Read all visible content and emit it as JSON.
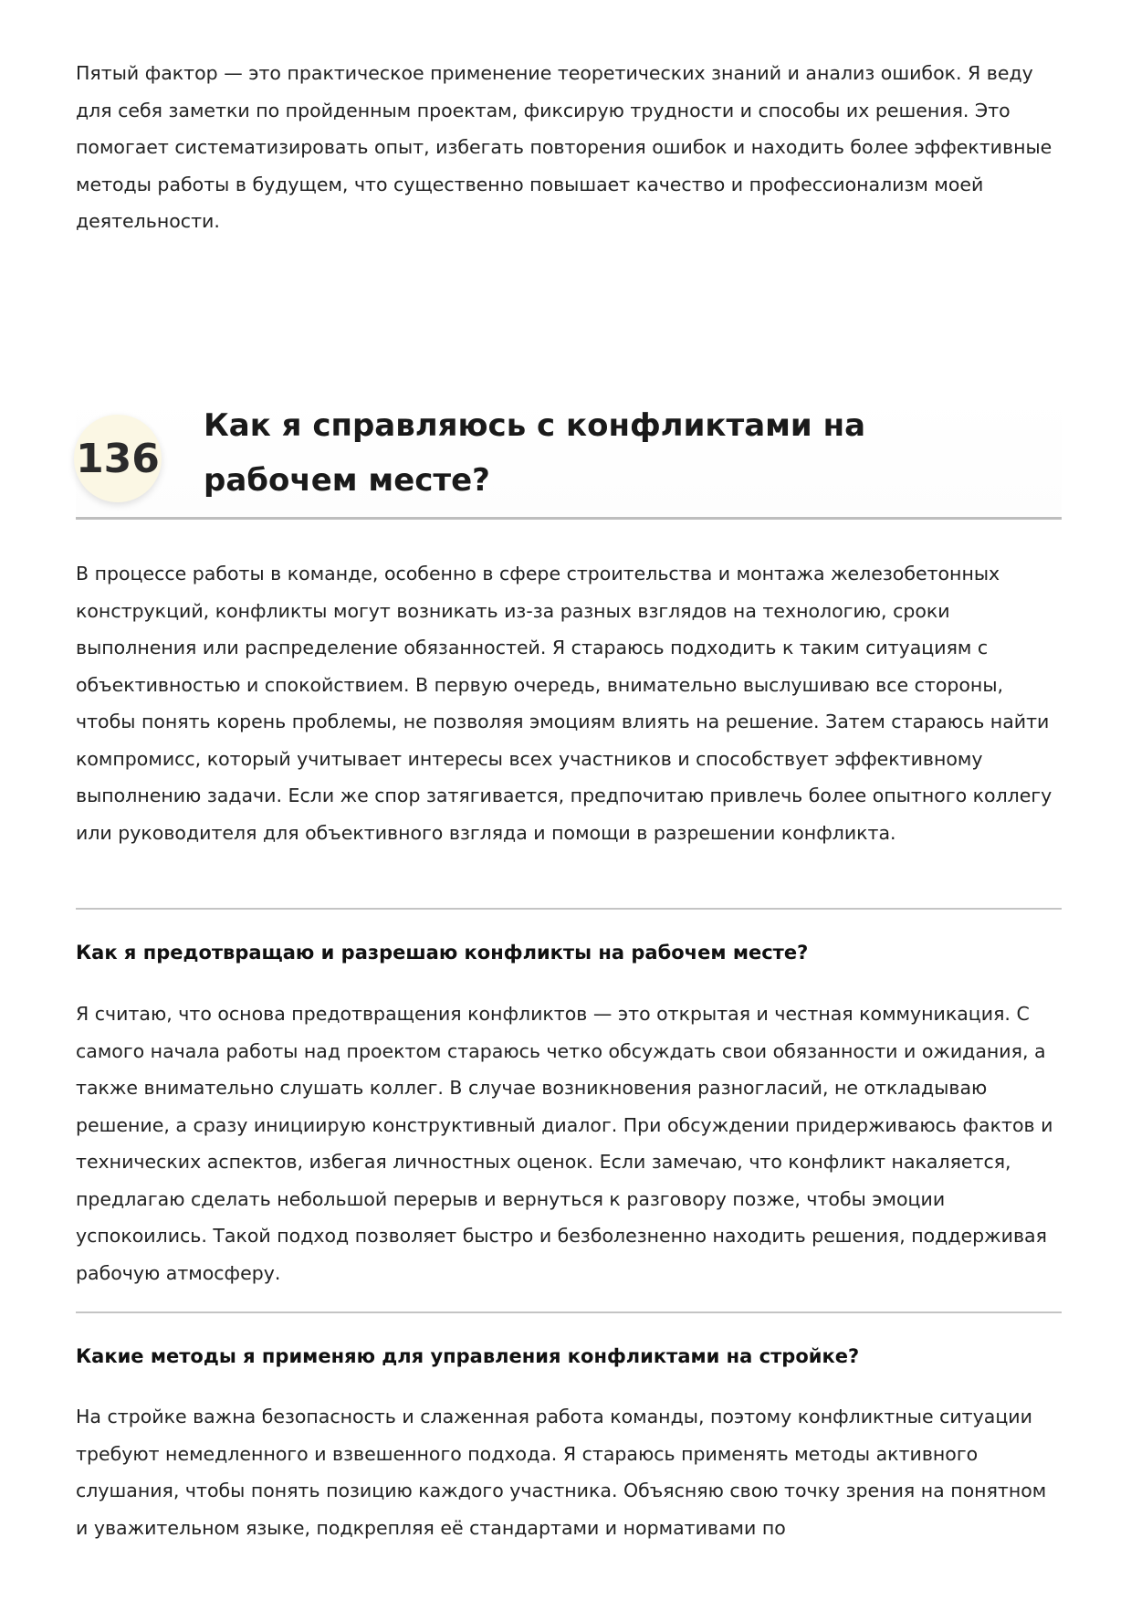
{
  "intro_paragraph": "Пятый фактор — это практическое применение теоретических знаний и анализ ошибок. Я веду для себя заметки по пройденным проектам, фиксирую трудности и способы их решения. Это помогает систематизировать опыт, избегать повторения ошибок и находить более эффективные методы работы в будущем, что существенно повышает качество и профессионализм моей деятельности.",
  "question": {
    "number": "136",
    "title": "Как я справляюсь с конфликтами на рабочем месте?",
    "answer": "В процессе работы в команде, особенно в сфере строительства и монтажа железобетонных конструкций, конфликты могут возникать из-за разных взглядов на технологию, сроки выполнения или распределение обязанностей. Я стараюсь подходить к таким ситуациям с объективностью и спокойствием. В первую очередь, внимательно выслушиваю все стороны, чтобы понять корень проблемы, не позволяя эмоциям влиять на решение. Затем стараюсь найти компромисс, который учитывает интересы всех участников и способствует эффективному выполнению задачи. Если же спор затягивается, предпочитаю привлечь более опытного коллегу или руководителя для объективного взгляда и помощи в разрешении конфликта."
  },
  "subsections": [
    {
      "title": "Как я предотвращаю и разрешаю конфликты на рабочем месте?",
      "text": "Я считаю, что основа предотвращения конфликтов — это открытая и честная коммуникация. С самого начала работы над проектом стараюсь четко обсуждать свои обязанности и ожидания, а также внимательно слушать коллег. В случае возникновения разногласий, не откладываю решение, а сразу инициирую конструктивный диалог. При обсуждении придерживаюсь фактов и технических аспектов, избегая личностных оценок. Если замечаю, что конфликт накаляется, предлагаю сделать небольшой перерыв и вернуться к разговору позже, чтобы эмоции успокоились. Такой подход позволяет быстро и безболезненно находить решения, поддерживая рабочую атмосферу."
    },
    {
      "title": "Какие методы я применяю для управления конфликтами на стройке?",
      "text": "На стройке важна безопасность и слаженная работа команды, поэтому конфликтные ситуации требуют немедленного и взвешенного подхода. Я стараюсь применять методы активного слушания, чтобы понять позицию каждого участника. Объясняю свою точку зрения на понятном и уважительном языке, подкрепляя её стандартами и нормативами по"
    }
  ]
}
